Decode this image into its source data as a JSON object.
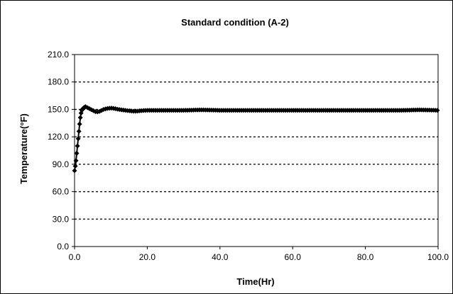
{
  "chart_data": {
    "type": "line",
    "title": "Standard condition (A-2)",
    "xlabel": "Time(Hr)",
    "ylabel": "Temperature(°F)",
    "xlim": [
      0,
      100
    ],
    "ylim": [
      0,
      210
    ],
    "x_ticks": [
      "0.0",
      "20.0",
      "40.0",
      "60.0",
      "80.0",
      "100.0"
    ],
    "y_ticks": [
      "0.0",
      "30.0",
      "60.0",
      "90.0",
      "120.0",
      "150.0",
      "180.0",
      "210.0"
    ],
    "grid": "horizontal dotted",
    "series_color": "#000000",
    "marker": "diamond",
    "series": [
      {
        "x": [
          0,
          0.2,
          0.4,
          0.6,
          0.8,
          1.0,
          1.2,
          1.4,
          1.6,
          1.8,
          2.0,
          2.3,
          2.6,
          3.0,
          3.5,
          4.0,
          4.5,
          5.0,
          6.0,
          7.0,
          8.0,
          9.0,
          10.0,
          11.0,
          12.0,
          13.0,
          14.0,
          15.0,
          16.0,
          17.0,
          18.0,
          20.0,
          22.0,
          25.0,
          30.0,
          35.0,
          40.0,
          50.0,
          60.0,
          70.0,
          80.0,
          90.0,
          95.0,
          100.0
        ],
        "y": [
          83,
          88,
          94,
          102,
          110,
          118,
          126,
          134,
          141,
          146,
          149,
          151,
          152,
          153,
          152,
          151,
          150,
          149,
          147,
          148,
          150,
          151,
          151.5,
          151,
          150,
          149.5,
          149,
          148.5,
          148,
          148,
          148.5,
          149,
          149,
          149,
          149,
          149.5,
          149,
          149,
          149,
          149,
          149,
          149,
          149.5,
          149
        ]
      }
    ]
  }
}
